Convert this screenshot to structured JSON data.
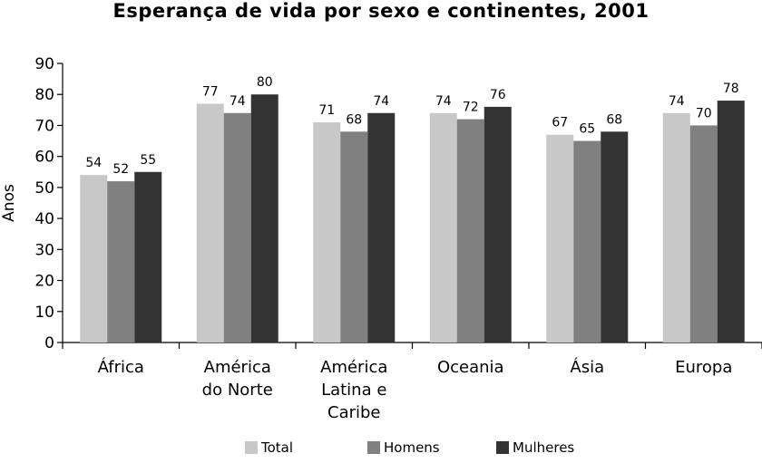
{
  "chart_data": {
    "type": "bar",
    "title": "Esperança de vida por sexo e continentes, 2001",
    "xlabel": "",
    "ylabel": "Anos",
    "ylim": [
      0,
      90
    ],
    "yticks": [
      0,
      10,
      20,
      30,
      40,
      50,
      60,
      70,
      80,
      90
    ],
    "categories": [
      "África",
      "América do Norte",
      "América Latina e Caribe",
      "Oceania",
      "Ásia",
      "Europa"
    ],
    "category_lines": [
      [
        "África"
      ],
      [
        "América",
        "do Norte"
      ],
      [
        "América",
        "Latina e",
        "Caribe"
      ],
      [
        "Oceania"
      ],
      [
        "Ásia"
      ],
      [
        "Europa"
      ]
    ],
    "series": [
      {
        "name": "Total",
        "values": [
          54,
          77,
          71,
          74,
          67,
          74
        ],
        "color": "#c8c8c8"
      },
      {
        "name": "Homens",
        "values": [
          52,
          74,
          68,
          72,
          65,
          70
        ],
        "color": "#808080"
      },
      {
        "name": "Mulheres",
        "values": [
          55,
          80,
          74,
          76,
          68,
          78
        ],
        "color": "#333333"
      }
    ],
    "grid": false,
    "legend": "bottom",
    "data_labels": true
  }
}
